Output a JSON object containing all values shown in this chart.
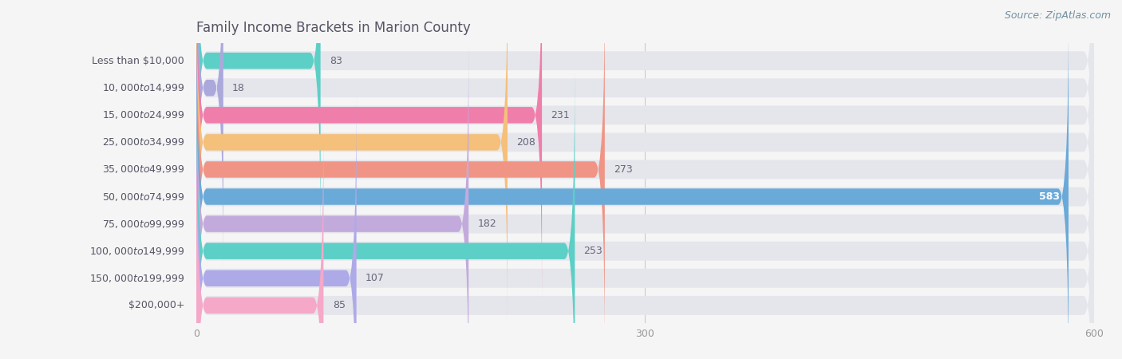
{
  "title": "Family Income Brackets in Marion County",
  "source": "Source: ZipAtlas.com",
  "categories": [
    "Less than $10,000",
    "$10,000 to $14,999",
    "$15,000 to $24,999",
    "$25,000 to $34,999",
    "$35,000 to $49,999",
    "$50,000 to $74,999",
    "$75,000 to $99,999",
    "$100,000 to $149,999",
    "$150,000 to $199,999",
    "$200,000+"
  ],
  "values": [
    83,
    18,
    231,
    208,
    273,
    583,
    182,
    253,
    107,
    85
  ],
  "bar_colors": [
    "#5CCFC6",
    "#ABA9DC",
    "#F07EAA",
    "#F5C07A",
    "#F09585",
    "#6AAAD8",
    "#C3AADC",
    "#5CCFC6",
    "#AEAAE8",
    "#F5A8C8"
  ],
  "bg_color": "#f5f5f5",
  "bar_bg_color": "#e5e5ec",
  "bar_bg_alpha": 1.0,
  "data_max": 600,
  "xticks": [
    0,
    300,
    600
  ],
  "title_fontsize": 12,
  "label_fontsize": 9,
  "value_fontsize": 9,
  "source_fontsize": 9,
  "title_color": "#555566",
  "label_color": "#555566",
  "value_color_inside": "#ffffff",
  "value_color_outside": "#666677",
  "grid_color": "#cccccc",
  "tick_color": "#999999"
}
